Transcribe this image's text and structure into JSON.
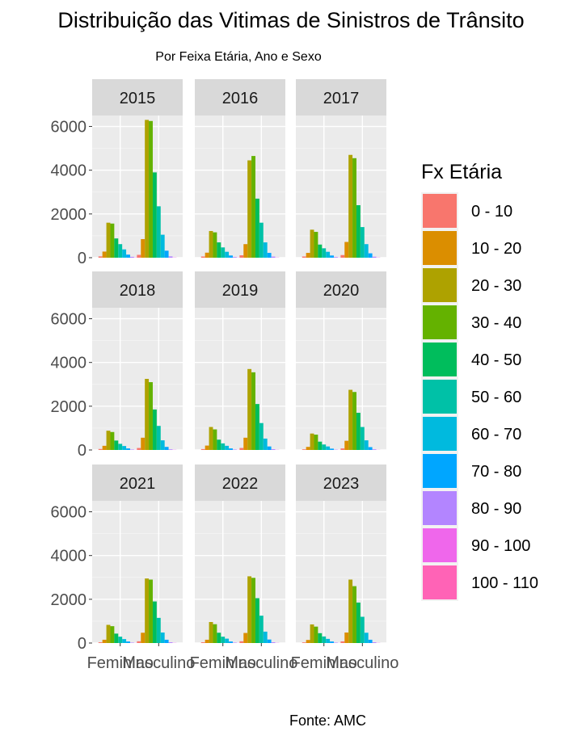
{
  "chart_data": {
    "type": "bar",
    "title": "Distribuição das Vitimas de Sinistros de Trânsito",
    "subtitle": "Por Feixa Etária, Ano e Sexo",
    "caption": "Fonte: AMC",
    "legend_title": "Fx Etária",
    "legend_position": "right",
    "grid": true,
    "ylim": [
      0,
      6500
    ],
    "yticks": [
      0,
      2000,
      4000,
      6000
    ],
    "categories": [
      "Feminino",
      "Masculino"
    ],
    "age_groups": [
      "0 - 10",
      "10 - 20",
      "20 - 30",
      "30 - 40",
      "40 - 50",
      "50 - 60",
      "60 - 70",
      "70 - 80",
      "80 - 90",
      "90 - 100",
      "100 - 110"
    ],
    "colors": [
      "#F8766D",
      "#DB8E00",
      "#AEA200",
      "#64B200",
      "#00BD5C",
      "#00C1A7",
      "#00BADE",
      "#00A6FF",
      "#B385FF",
      "#EF67EB",
      "#FF63B6"
    ],
    "panels": [
      {
        "year": "2015",
        "Feminino": [
          60,
          280,
          1600,
          1560,
          880,
          620,
          380,
          140,
          40,
          10,
          0
        ],
        "Masculino": [
          130,
          850,
          6300,
          6250,
          3900,
          2350,
          1050,
          320,
          60,
          10,
          0
        ]
      },
      {
        "year": "2016",
        "Feminino": [
          55,
          230,
          1220,
          1160,
          700,
          470,
          270,
          100,
          30,
          8,
          0
        ],
        "Masculino": [
          110,
          620,
          4450,
          4650,
          2700,
          1600,
          700,
          220,
          50,
          10,
          0
        ]
      },
      {
        "year": "2017",
        "Feminino": [
          55,
          220,
          1280,
          1180,
          600,
          430,
          270,
          100,
          30,
          8,
          0
        ],
        "Masculino": [
          120,
          720,
          4700,
          4550,
          2400,
          1400,
          620,
          200,
          45,
          10,
          0
        ]
      },
      {
        "year": "2018",
        "Feminino": [
          45,
          190,
          880,
          820,
          430,
          280,
          180,
          70,
          20,
          5,
          0
        ],
        "Masculino": [
          90,
          560,
          3250,
          3100,
          1850,
          1100,
          440,
          140,
          30,
          8,
          0
        ]
      },
      {
        "year": "2019",
        "Feminino": [
          40,
          200,
          1050,
          940,
          470,
          300,
          190,
          70,
          20,
          5,
          0
        ],
        "Masculino": [
          90,
          560,
          3700,
          3550,
          2100,
          1230,
          520,
          160,
          35,
          8,
          0
        ]
      },
      {
        "year": "2020",
        "Feminino": [
          30,
          140,
          750,
          700,
          380,
          250,
          160,
          60,
          15,
          4,
          0
        ],
        "Masculino": [
          70,
          420,
          2750,
          2650,
          1700,
          1050,
          440,
          130,
          30,
          6,
          0
        ]
      },
      {
        "year": "2021",
        "Feminino": [
          35,
          150,
          830,
          770,
          430,
          290,
          180,
          70,
          20,
          5,
          0
        ],
        "Masculino": [
          80,
          470,
          2950,
          2900,
          1900,
          1150,
          480,
          150,
          35,
          8,
          0
        ]
      },
      {
        "year": "2022",
        "Feminino": [
          35,
          150,
          960,
          860,
          470,
          290,
          200,
          70,
          20,
          5,
          0
        ],
        "Masculino": [
          80,
          460,
          3050,
          2980,
          2050,
          1250,
          520,
          160,
          35,
          8,
          0
        ]
      },
      {
        "year": "2023",
        "Feminino": [
          30,
          140,
          850,
          750,
          450,
          300,
          190,
          70,
          20,
          5,
          0
        ],
        "Masculino": [
          75,
          480,
          2900,
          2600,
          1850,
          1200,
          470,
          150,
          35,
          8,
          0
        ]
      }
    ]
  }
}
